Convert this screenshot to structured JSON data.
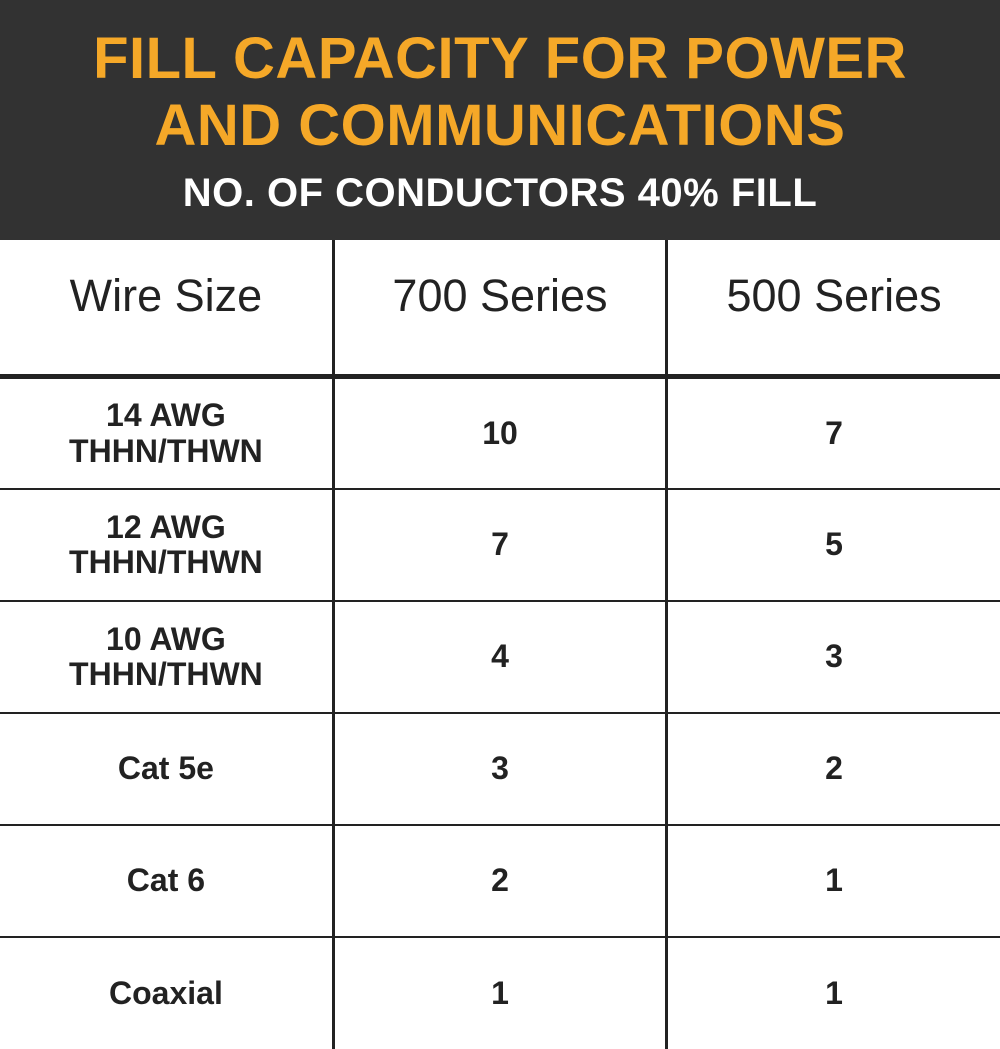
{
  "header": {
    "title_line1": "FILL CAPACITY FOR POWER",
    "title_line2": "AND COMMUNICATIONS",
    "subtitle": "NO. OF CONDUCTORS 40% FILL",
    "bg_color": "#323232",
    "title_color": "#f5a828",
    "subtitle_color": "#ffffff",
    "title_fontsize": 58,
    "subtitle_fontsize": 40
  },
  "table": {
    "type": "table",
    "columns": [
      "Wire Size",
      "700 Series",
      "500 Series"
    ],
    "column_widths": [
      0.333,
      0.333,
      0.333
    ],
    "header_fontsize": 45,
    "cell_fontsize": 32,
    "text_color": "#222222",
    "border_color": "#222222",
    "header_border_bottom_width": 5,
    "col_border_width": 3,
    "row_border_width": 2,
    "rows": [
      {
        "wire_size_l1": "14 AWG",
        "wire_size_l2": "THHN/THWN",
        "s700": "10",
        "s500": "7"
      },
      {
        "wire_size_l1": "12 AWG",
        "wire_size_l2": "THHN/THWN",
        "s700": "7",
        "s500": "5"
      },
      {
        "wire_size_l1": "10 AWG",
        "wire_size_l2": "THHN/THWN",
        "s700": "4",
        "s500": "3"
      },
      {
        "wire_size_l1": "Cat 5e",
        "wire_size_l2": "",
        "s700": "3",
        "s500": "2"
      },
      {
        "wire_size_l1": "Cat 6",
        "wire_size_l2": "",
        "s700": "2",
        "s500": "1"
      },
      {
        "wire_size_l1": "Coaxial",
        "wire_size_l2": "",
        "s700": "1",
        "s500": "1"
      }
    ]
  }
}
